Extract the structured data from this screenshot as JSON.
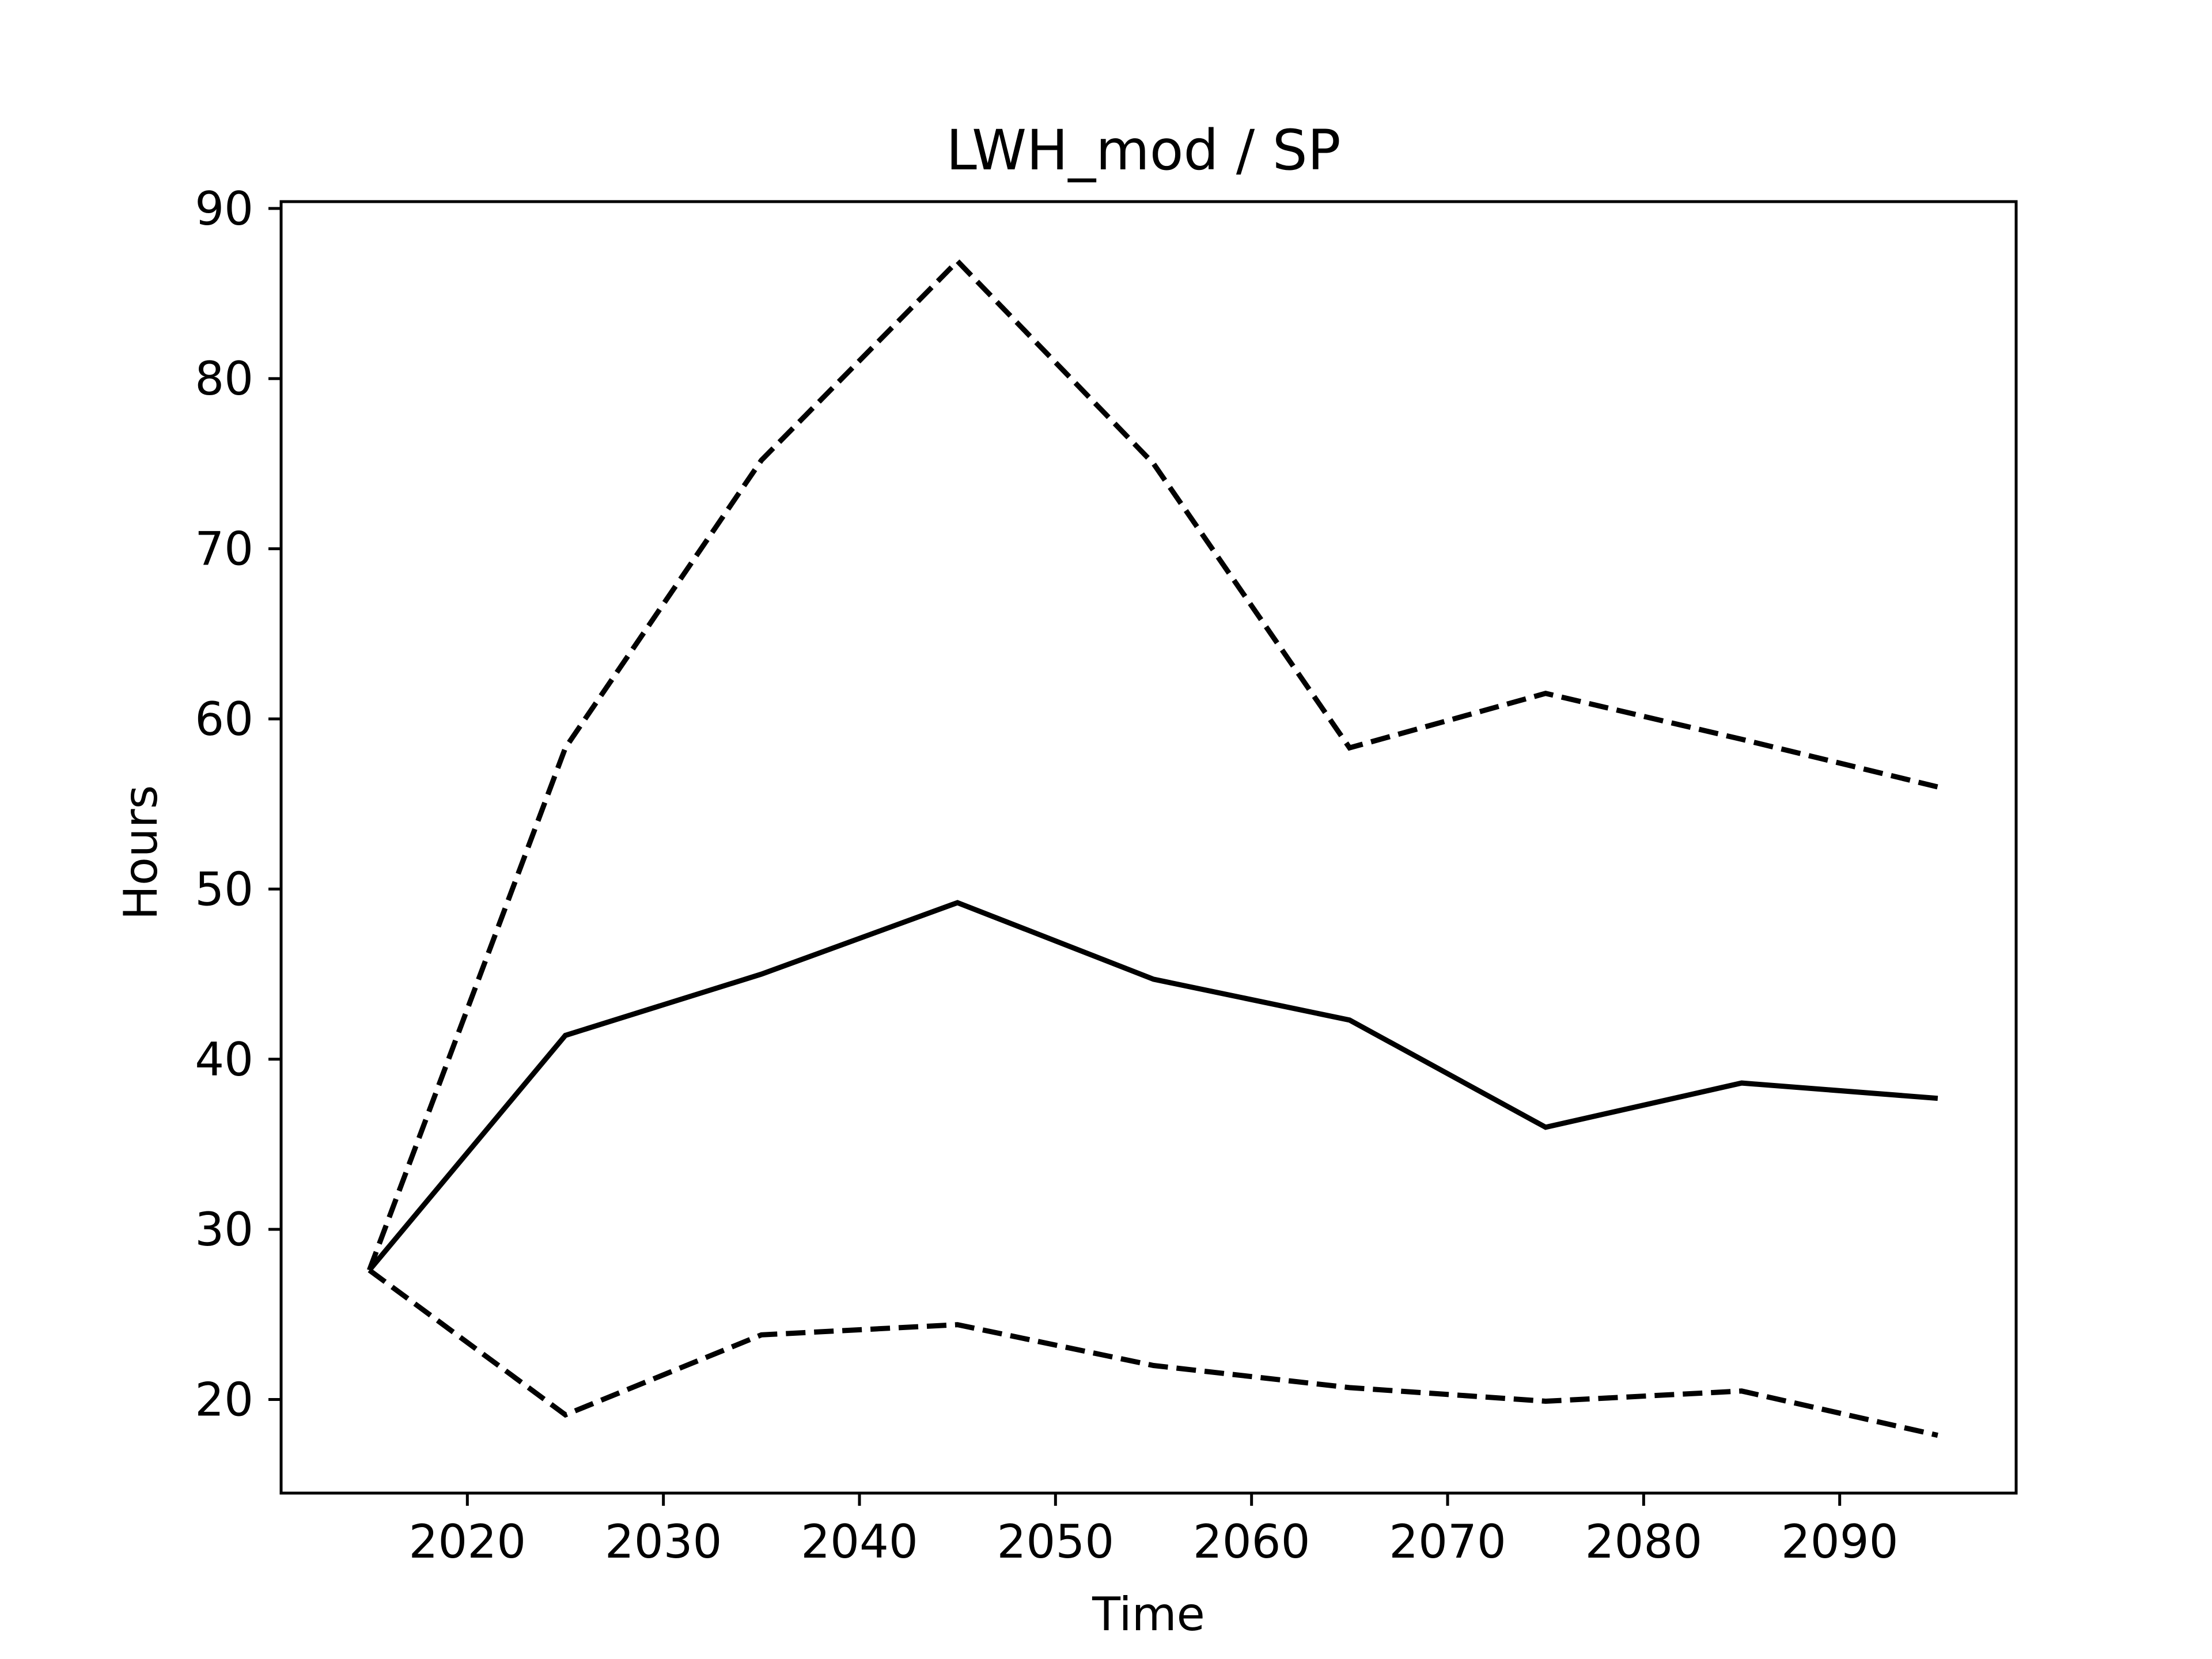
{
  "chart_data": {
    "type": "line",
    "title": "LWH_mod / SP",
    "xlabel": "Time",
    "ylabel": "Hours",
    "xlim": [
      2010.5,
      2099
    ],
    "ylim": [
      14.5,
      90.4
    ],
    "xticks": [
      2020,
      2030,
      2040,
      2050,
      2060,
      2070,
      2080,
      2090
    ],
    "yticks": [
      20,
      30,
      40,
      50,
      60,
      70,
      80,
      90
    ],
    "grid": false,
    "legend": null,
    "x": [
      2015,
      2025,
      2035,
      2045,
      2055,
      2065,
      2075,
      2085,
      2095
    ],
    "series": [
      {
        "style": "dashed",
        "color": "#000000",
        "values": [
          27.6,
          58.3,
          75.2,
          86.9,
          75.0,
          58.3,
          61.5,
          58.8,
          56.0
        ]
      },
      {
        "style": "solid",
        "color": "#000000",
        "values": [
          27.6,
          41.4,
          45.0,
          49.2,
          44.7,
          42.3,
          36.0,
          38.6,
          37.7
        ]
      },
      {
        "style": "dashed",
        "color": "#000000",
        "values": [
          27.6,
          19.1,
          23.8,
          24.4,
          22.0,
          20.7,
          19.9,
          20.5,
          17.9
        ]
      }
    ]
  }
}
